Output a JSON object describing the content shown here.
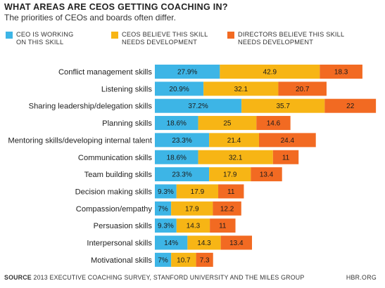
{
  "header": {
    "title": "WHAT AREAS ARE CEOS GETTING COACHING IN?",
    "subtitle": "The priorities of CEOs and boards often differ."
  },
  "legend": [
    {
      "label": "CEO IS WORKING\nON THIS SKILL",
      "color": "#3db5e6"
    },
    {
      "label": "CEOS BELIEVE THIS SKILL\nNEEDS DEVELOPMENT",
      "color": "#f7b515"
    },
    {
      "label": "DIRECTORS BELIEVE THIS SKILL\nNEEDS DEVELOPMENT",
      "color": "#f26a22"
    }
  ],
  "footer": {
    "source_label": "SOURCE",
    "source_text": " 2013 EXECUTIVE COACHING SURVEY, STANFORD UNIVERSITY AND THE MILES GROUP",
    "brand": "HBR.ORG"
  },
  "chart_data": {
    "type": "bar",
    "orientation": "horizontal",
    "stacked": true,
    "categories": [
      "Conflict management skills",
      "Listening skills",
      "Sharing leadership/delegation skills",
      "Planning skills",
      "Mentoring skills/developing internal talent",
      "Communication skills",
      "Team building skills",
      "Decision making skills",
      "Compassion/empathy",
      "Persuasion skills",
      "Interpersonal skills",
      "Motivational skills"
    ],
    "series": [
      {
        "name": "CEO IS WORKING ON THIS SKILL",
        "color": "#3db5e6",
        "values": [
          27.9,
          20.9,
          37.2,
          18.6,
          23.3,
          18.6,
          23.3,
          9.3,
          7,
          9.3,
          14,
          7
        ],
        "labels": [
          "27.9%",
          "20.9%",
          "37.2%",
          "18.6%",
          "23.3%",
          "18.6%",
          "23.3%",
          "9.3%",
          "7%",
          "9.3%",
          "14%",
          "7%"
        ]
      },
      {
        "name": "CEOS BELIEVE THIS SKILL NEEDS DEVELOPMENT",
        "color": "#f7b515",
        "values": [
          42.9,
          32.1,
          35.7,
          25,
          21.4,
          32.1,
          17.9,
          17.9,
          17.9,
          14.3,
          14.3,
          10.7
        ],
        "labels": [
          "42.9",
          "32.1",
          "35.7",
          "25",
          "21.4",
          "32.1",
          "17.9",
          "17.9",
          "17.9",
          "14.3",
          "14.3",
          "10.7"
        ]
      },
      {
        "name": "DIRECTORS BELIEVE THIS SKILL NEEDS DEVELOPMENT",
        "color": "#f26a22",
        "values": [
          18.3,
          20.7,
          22,
          14.6,
          24.4,
          11,
          13.4,
          11,
          12.2,
          11,
          13.4,
          7.3
        ],
        "labels": [
          "18.3",
          "20.7",
          "22",
          "14.6",
          "24.4",
          "11",
          "13.4",
          "11",
          "12.2",
          "11",
          "13.4",
          "7.3"
        ]
      }
    ],
    "grid": false,
    "legend_position": "top"
  }
}
